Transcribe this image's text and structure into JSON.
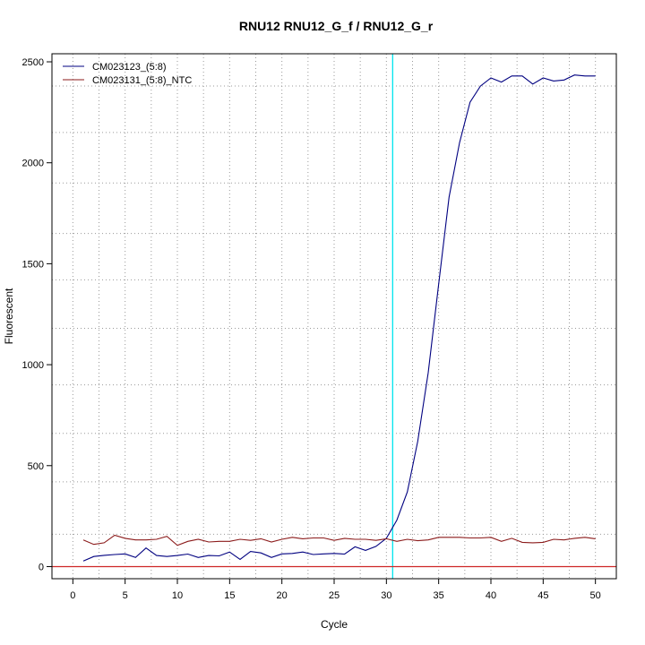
{
  "chart_data": {
    "type": "line",
    "title": "RNU12  RNU12_G_f / RNU12_G_r",
    "xlabel": "Cycle",
    "ylabel": "Fluorescent",
    "xlim": [
      -2,
      52
    ],
    "ylim": [
      -60,
      2540
    ],
    "x_ticks": [
      0,
      5,
      10,
      15,
      20,
      25,
      30,
      35,
      40,
      45,
      50
    ],
    "y_ticks": [
      0,
      500,
      1000,
      1500,
      2000,
      2500
    ],
    "x_grid": [
      0,
      2.5,
      5,
      7.5,
      10,
      12.5,
      15,
      17.5,
      20,
      22.5,
      25,
      27.5,
      30,
      32.5,
      35,
      37.5,
      40,
      42.5,
      45,
      47.5,
      50
    ],
    "y_grid": [
      0,
      160,
      420,
      660,
      900,
      1180,
      1420,
      1650,
      1900,
      2150,
      2380
    ],
    "grid": true,
    "legend_position": "top-left",
    "threshold_cycle": 30.6,
    "baseline": 0,
    "colors": {
      "sample": "#000080",
      "ntc": "#8b1a1a",
      "threshold": "#00e5ee",
      "baseline": "#cd2626"
    },
    "x": [
      1,
      2,
      3,
      4,
      5,
      6,
      7,
      8,
      9,
      10,
      11,
      12,
      13,
      14,
      15,
      16,
      17,
      18,
      19,
      20,
      21,
      22,
      23,
      24,
      25,
      26,
      27,
      28,
      29,
      30,
      31,
      32,
      33,
      34,
      35,
      36,
      37,
      38,
      39,
      40,
      41,
      42,
      43,
      44,
      45,
      46,
      47,
      48,
      49,
      50
    ],
    "series": [
      {
        "name": "CM023123_(5:8)",
        "values": [
          28,
          50,
          56,
          60,
          63,
          45,
          92,
          55,
          50,
          55,
          62,
          45,
          55,
          53,
          72,
          36,
          75,
          68,
          45,
          63,
          65,
          72,
          60,
          63,
          65,
          62,
          98,
          80,
          100,
          140,
          230,
          370,
          620,
          960,
          1400,
          1830,
          2100,
          2300,
          2380,
          2420,
          2400,
          2430,
          2430,
          2390,
          2420,
          2405,
          2410,
          2435,
          2430,
          2430
        ]
      },
      {
        "name": "CM023131_(5:8)_NTC",
        "values": [
          132,
          110,
          118,
          155,
          140,
          132,
          132,
          135,
          150,
          105,
          125,
          135,
          122,
          125,
          125,
          135,
          130,
          138,
          122,
          135,
          145,
          138,
          142,
          142,
          130,
          140,
          135,
          135,
          130,
          138,
          125,
          135,
          128,
          132,
          145,
          145,
          145,
          142,
          142,
          145,
          125,
          140,
          120,
          118,
          120,
          135,
          132,
          140,
          145,
          138
        ]
      }
    ]
  }
}
